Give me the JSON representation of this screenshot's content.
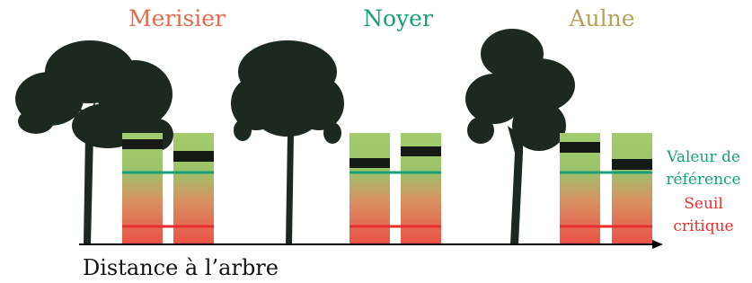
{
  "titles": [
    "Merisier",
    "Noyer",
    "Aulne"
  ],
  "legend": {
    "reference": "Valeur de référence",
    "threshold": "Seuil critique"
  },
  "axis_label": "Distance à l’arbre"
}
